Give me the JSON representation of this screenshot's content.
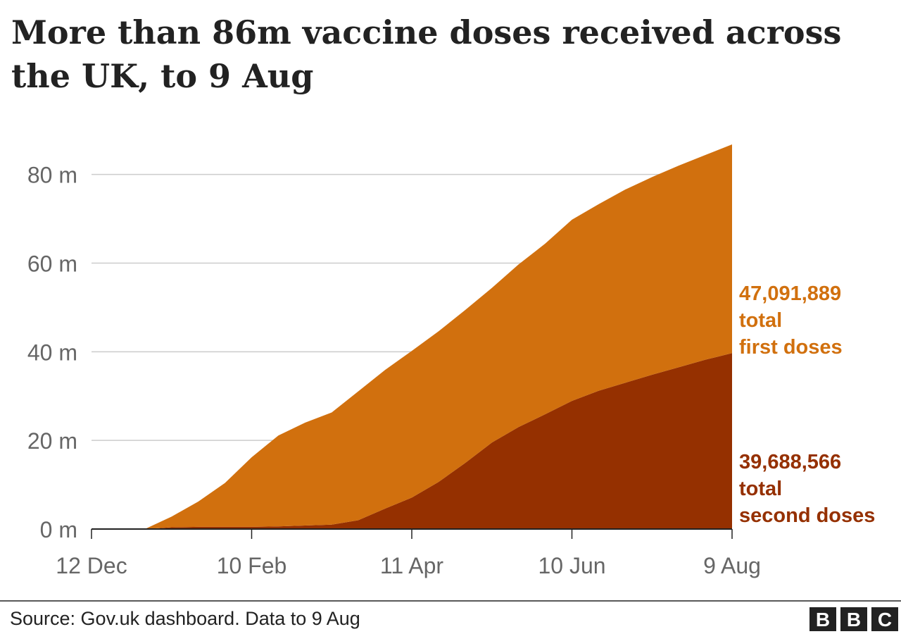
{
  "chart_data": {
    "type": "stacked_area",
    "title": [
      "More than 86m vaccine doses received across",
      "the UK, to 9 Aug"
    ],
    "source": "Source: Gov.uk dashboard. Data to 9 Aug",
    "logo": [
      "B",
      "B",
      "C"
    ],
    "categories": [
      "12 Dec",
      null,
      null,
      null,
      null,
      null,
      "10 Feb",
      null,
      null,
      null,
      null,
      null,
      "11 Apr",
      null,
      null,
      null,
      null,
      null,
      "10 Jun",
      null,
      null,
      null,
      null,
      null,
      "9 Aug"
    ],
    "series": [
      {
        "color": "#953000",
        "label": [
          "total",
          "second doses"
        ],
        "values": [
          0,
          0,
          0,
          0.4,
          0.5,
          0.5,
          0.5,
          0.6,
          0.8,
          1.0,
          2.0,
          4.6,
          7.1,
          10.6,
          14.9,
          19.5,
          23.0,
          25.9,
          28.9,
          31.2,
          33.0,
          34.8,
          36.5,
          38.2,
          39.688566
        ],
        "value_labels": [
          null,
          null,
          null,
          null,
          null,
          null,
          null,
          null,
          null,
          null,
          null,
          null,
          null,
          null,
          null,
          null,
          null,
          null,
          null,
          null,
          null,
          null,
          null,
          null,
          "39,688,566"
        ]
      },
      {
        "color": "#d1700e",
        "label": [
          "total",
          "first doses"
        ],
        "values": [
          0,
          0,
          0,
          2.4,
          5.7,
          9.9,
          15.7,
          20.5,
          23.2,
          25.3,
          29.1,
          31.3,
          33.1,
          34.0,
          34.5,
          34.9,
          36.7,
          38.5,
          40.9,
          42.1,
          43.6,
          44.6,
          45.5,
          46.2,
          47.091889
        ],
        "value_labels": [
          null,
          null,
          null,
          null,
          null,
          null,
          null,
          null,
          null,
          null,
          null,
          null,
          null,
          null,
          null,
          null,
          null,
          null,
          null,
          null,
          null,
          null,
          null,
          null,
          "47,091,889"
        ]
      }
    ],
    "ylim": [
      0,
      86.78
    ],
    "yticks": [
      {
        "value": 0,
        "label": "0 m"
      },
      {
        "value": 20,
        "label": "20 m"
      },
      {
        "value": 40,
        "label": "40 m"
      },
      {
        "value": 60,
        "label": "60 m"
      },
      {
        "value": 80,
        "label": "80 m"
      }
    ],
    "grid": true
  }
}
